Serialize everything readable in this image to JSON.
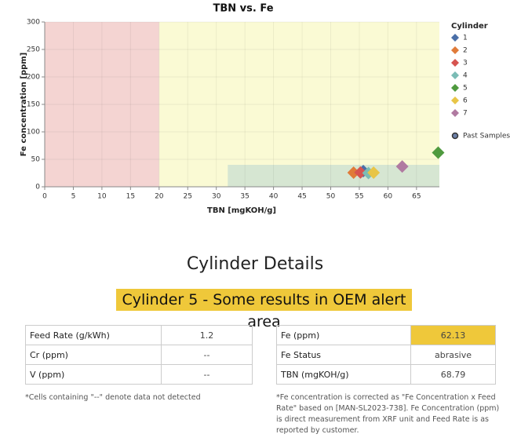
{
  "chart_data": {
    "type": "scatter",
    "title": "TBN vs. Fe",
    "x_label": "TBN [mgKOH/g]",
    "y_label": "Fe concentration [ppm]",
    "xlim": [
      0,
      69
    ],
    "ylim": [
      0,
      300
    ],
    "xticks": [
      0,
      5,
      10,
      15,
      20,
      25,
      30,
      35,
      40,
      45,
      50,
      55,
      60,
      65
    ],
    "yticks": [
      0,
      50,
      100,
      150,
      200,
      250,
      300
    ],
    "grid": true,
    "zones": [
      {
        "x": [
          0,
          20
        ],
        "y": [
          0,
          300
        ],
        "color": "#f4d4d2"
      },
      {
        "x": [
          20,
          69
        ],
        "y": [
          0,
          300
        ],
        "color": "#fafad4"
      },
      {
        "x": [
          32,
          69
        ],
        "y": [
          0,
          40
        ],
        "color": "#d6e6d2"
      }
    ],
    "legend_title": "Cylinder",
    "series": [
      {
        "name": "1",
        "color": "#4a6fa8",
        "marker": "diamond",
        "x": [
          55.7
        ],
        "values": [
          28.6
        ]
      },
      {
        "name": "2",
        "color": "#e07b39",
        "marker": "diamond",
        "x": [
          54.0
        ],
        "values": [
          25.7
        ]
      },
      {
        "name": "3",
        "color": "#d65450",
        "marker": "diamond",
        "x": [
          55.2
        ],
        "values": [
          26
        ]
      },
      {
        "name": "4",
        "color": "#7bbcb5",
        "marker": "diamond",
        "x": [
          56.6
        ],
        "values": [
          25
        ]
      },
      {
        "name": "5",
        "color": "#4f9a3f",
        "marker": "diamond",
        "x": [
          68.79
        ],
        "values": [
          62.13
        ]
      },
      {
        "name": "6",
        "color": "#e8c547",
        "marker": "diamond",
        "x": [
          57.5
        ],
        "values": [
          25.7
        ]
      },
      {
        "name": "7",
        "color": "#b07aa1",
        "marker": "diamond",
        "x": [
          62.5
        ],
        "values": [
          37
        ]
      },
      {
        "name": "Past Samples",
        "color": "#6b7fa8",
        "marker": "circle",
        "x": [],
        "values": []
      }
    ]
  },
  "details": {
    "heading": "Cylinder Details",
    "status": "Cylinder 5 - Some results in OEM alert area",
    "left_table": [
      [
        "Feed Rate (g/kWh)",
        "1.2"
      ],
      [
        "Cr (ppm)",
        "--"
      ],
      [
        "V (ppm)",
        "--"
      ]
    ],
    "right_table": [
      [
        "Fe (ppm)",
        "62.13"
      ],
      [
        "Fe Status",
        "abrasive"
      ],
      [
        "TBN (mgKOH/g)",
        "68.79"
      ]
    ],
    "left_note": "*Cells containing \"--\" denote data not detected",
    "right_note": "*Fe concentration is corrected as \"Fe Concentration x Feed Rate\" based on [MAN-SL2023-738]. Fe Concentration (ppm) is direct measurement from XRF unit and Feed Rate is as reported by customer."
  }
}
